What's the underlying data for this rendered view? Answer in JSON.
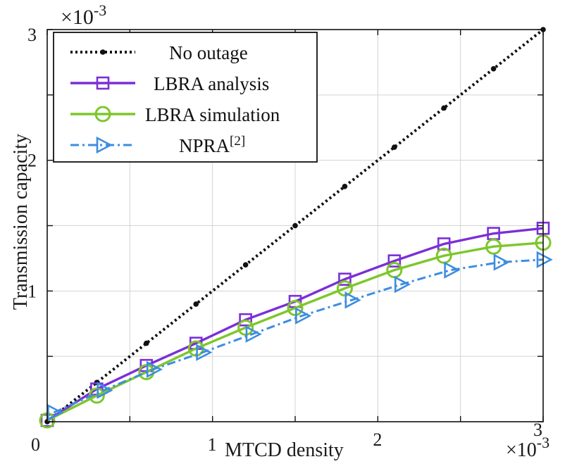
{
  "chart_data": {
    "type": "line",
    "title": "",
    "xlabel": "MTCD density",
    "ylabel": "Transmission capacity",
    "x_multiplier": "×10",
    "x_exponent": "-3",
    "y_multiplier": "×10",
    "y_exponent": "-3",
    "xlim": [
      0,
      3
    ],
    "ylim": [
      0,
      3
    ],
    "x_ticks": [
      0,
      0.5,
      1,
      1.5,
      2,
      2.5,
      3
    ],
    "y_ticks": [
      0,
      0.5,
      1,
      1.5,
      2,
      2.5,
      3
    ],
    "x_tick_labels": [
      "0",
      "1",
      "2",
      "3"
    ],
    "y_tick_labels": [
      "1",
      "2",
      "3"
    ],
    "legend_position": "top-left",
    "grid": true,
    "series": [
      {
        "name": "No outage",
        "legend_label": "No outage",
        "color": "#111111",
        "style": "dotted",
        "marker": "dot",
        "x": [
          0,
          0.3,
          0.6,
          0.9,
          1.2,
          1.5,
          1.8,
          2.1,
          2.4,
          2.7,
          3.0
        ],
        "y": [
          0,
          0.3,
          0.6,
          0.9,
          1.2,
          1.5,
          1.8,
          2.1,
          2.4,
          2.7,
          3.0
        ]
      },
      {
        "name": "LBRA analysis",
        "legend_label": "LBRA analysis",
        "color": "#7b2fd6",
        "style": "solid",
        "marker": "square",
        "x": [
          0,
          0.3,
          0.6,
          0.9,
          1.2,
          1.5,
          1.8,
          2.1,
          2.4,
          2.7,
          3.0
        ],
        "y": [
          0.01,
          0.25,
          0.43,
          0.6,
          0.78,
          0.92,
          1.09,
          1.23,
          1.36,
          1.44,
          1.48
        ]
      },
      {
        "name": "LBRA simulation",
        "legend_label": "LBRA simulation",
        "color": "#7cc72a",
        "style": "solid",
        "marker": "circle",
        "x": [
          0,
          0.3,
          0.6,
          0.9,
          1.2,
          1.5,
          1.8,
          2.1,
          2.4,
          2.7,
          3.0
        ],
        "y": [
          0.01,
          0.2,
          0.38,
          0.56,
          0.72,
          0.87,
          1.02,
          1.16,
          1.27,
          1.34,
          1.37
        ]
      },
      {
        "name": "NPRA[2]",
        "legend_label": "NPRA",
        "legend_superscript": "[2]",
        "color": "#3d8de0",
        "style": "dashdot",
        "marker": "triangle-right",
        "x": [
          0.04,
          0.34,
          0.64,
          0.94,
          1.24,
          1.54,
          1.84,
          2.14,
          2.44,
          2.74,
          3.0
        ],
        "y": [
          0.07,
          0.24,
          0.4,
          0.53,
          0.67,
          0.81,
          0.93,
          1.05,
          1.16,
          1.22,
          1.24
        ]
      }
    ]
  }
}
